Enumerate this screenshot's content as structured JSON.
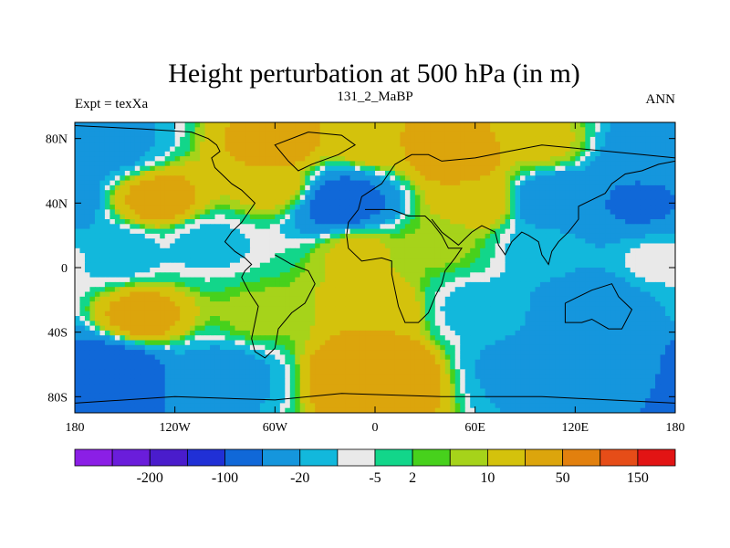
{
  "chart_data": {
    "type": "heatmap",
    "title": "Height perturbation at 500 hPa (in m)",
    "subtitle_left": "Expt = texXa",
    "subtitle_center": "131_2_MaBP",
    "subtitle_right": "ANN",
    "xlim": [
      -180,
      180
    ],
    "ylim": [
      -90,
      90
    ],
    "x_ticks": [
      {
        "value": -180,
        "label": "180"
      },
      {
        "value": -120,
        "label": "120W"
      },
      {
        "value": -60,
        "label": "60W"
      },
      {
        "value": 0,
        "label": "0"
      },
      {
        "value": 60,
        "label": "60E"
      },
      {
        "value": 120,
        "label": "120E"
      },
      {
        "value": 180,
        "label": "180"
      }
    ],
    "y_ticks": [
      {
        "value": 80,
        "label": "80N"
      },
      {
        "value": 40,
        "label": "40N"
      },
      {
        "value": 0,
        "label": "0"
      },
      {
        "value": -40,
        "label": "40S"
      },
      {
        "value": -80,
        "label": "80S"
      }
    ],
    "colorbar": {
      "colors": [
        "#8b1fe6",
        "#6a1ddb",
        "#4a1ccc",
        "#2030d6",
        "#1068d8",
        "#1596dd",
        "#12b8dc",
        "#e9e9e9",
        "#12d68a",
        "#47d11c",
        "#a6d31a",
        "#d4c20c",
        "#dca50c",
        "#e2800e",
        "#e64d18",
        "#e21414"
      ],
      "labels": [
        {
          "after_index": 1,
          "text": "-200"
        },
        {
          "after_index": 3,
          "text": "-100"
        },
        {
          "after_index": 5,
          "text": "-20"
        },
        {
          "after_index": 7,
          "text": "-5"
        },
        {
          "after_index": 8,
          "text": "2"
        },
        {
          "after_index": 10,
          "text": "10"
        },
        {
          "after_index": 12,
          "text": "50"
        },
        {
          "after_index": 14,
          "text": "150"
        }
      ]
    },
    "field_centers": [
      {
        "lon": -160,
        "lat": 75,
        "value": -25
      },
      {
        "lon": -60,
        "lat": 75,
        "value": 25
      },
      {
        "lon": 0,
        "lat": 80,
        "value": 20
      },
      {
        "lon": 50,
        "lat": 70,
        "value": 30
      },
      {
        "lon": 100,
        "lat": 78,
        "value": 12
      },
      {
        "lon": 165,
        "lat": 72,
        "value": -30
      },
      {
        "lon": -130,
        "lat": 42,
        "value": 25
      },
      {
        "lon": -60,
        "lat": 50,
        "value": 14
      },
      {
        "lon": -20,
        "lat": 40,
        "value": -70
      },
      {
        "lon": 60,
        "lat": 40,
        "value": 18
      },
      {
        "lon": 110,
        "lat": 40,
        "value": -45
      },
      {
        "lon": 160,
        "lat": 40,
        "value": -55
      },
      {
        "lon": -155,
        "lat": 10,
        "value": -15
      },
      {
        "lon": -100,
        "lat": 15,
        "value": -12
      },
      {
        "lon": -10,
        "lat": 10,
        "value": 12
      },
      {
        "lon": 40,
        "lat": 15,
        "value": 6
      },
      {
        "lon": 100,
        "lat": 12,
        "value": -12
      },
      {
        "lon": 170,
        "lat": 5,
        "value": -8
      },
      {
        "lon": -140,
        "lat": -30,
        "value": 25
      },
      {
        "lon": -70,
        "lat": -30,
        "value": 6
      },
      {
        "lon": 0,
        "lat": -25,
        "value": 18
      },
      {
        "lon": 60,
        "lat": -25,
        "value": -12
      },
      {
        "lon": 130,
        "lat": -25,
        "value": -40
      },
      {
        "lon": -160,
        "lat": -65,
        "value": -90
      },
      {
        "lon": -90,
        "lat": -65,
        "value": -25
      },
      {
        "lon": 0,
        "lat": -65,
        "value": 45
      },
      {
        "lon": 90,
        "lat": -60,
        "value": -25
      },
      {
        "lon": 150,
        "lat": -60,
        "value": -40
      }
    ],
    "coastlines": [
      [
        [
          -180,
          88
        ],
        [
          -140,
          86
        ],
        [
          -110,
          84
        ],
        [
          -100,
          80
        ],
        [
          -95,
          76
        ],
        [
          -93,
          72
        ],
        [
          -98,
          68
        ],
        [
          -96,
          62
        ],
        [
          -92,
          58
        ],
        [
          -86,
          52
        ],
        [
          -80,
          48
        ],
        [
          -72,
          40
        ],
        [
          -76,
          34
        ],
        [
          -80,
          28
        ],
        [
          -86,
          22
        ],
        [
          -90,
          16
        ],
        [
          -84,
          10
        ],
        [
          -78,
          6
        ],
        [
          -74,
          2
        ],
        [
          -78,
          -2
        ],
        [
          -80,
          -6
        ],
        [
          -75,
          -16
        ],
        [
          -70,
          -24
        ],
        [
          -72,
          -34
        ],
        [
          -74,
          -44
        ],
        [
          -72,
          -52
        ],
        [
          -66,
          -56
        ],
        [
          -60,
          -50
        ],
        [
          -58,
          -38
        ],
        [
          -50,
          -28
        ],
        [
          -42,
          -22
        ],
        [
          -36,
          -10
        ],
        [
          -40,
          -2
        ],
        [
          -50,
          2
        ],
        [
          -60,
          8
        ]
      ],
      [
        [
          -40,
          84
        ],
        [
          -20,
          82
        ],
        [
          -12,
          76
        ],
        [
          -22,
          70
        ],
        [
          -38,
          64
        ],
        [
          -46,
          60
        ],
        [
          -52,
          66
        ],
        [
          -60,
          76
        ],
        [
          -40,
          84
        ]
      ],
      [
        [
          -10,
          36
        ],
        [
          -8,
          44
        ],
        [
          -2,
          48
        ],
        [
          4,
          52
        ],
        [
          8,
          58
        ],
        [
          12,
          64
        ],
        [
          22,
          70
        ],
        [
          32,
          70
        ],
        [
          40,
          66
        ],
        [
          60,
          68
        ],
        [
          80,
          72
        ],
        [
          100,
          76
        ],
        [
          120,
          74
        ],
        [
          140,
          72
        ],
        [
          160,
          70
        ],
        [
          180,
          68
        ]
      ],
      [
        [
          -10,
          36
        ],
        [
          -16,
          28
        ],
        [
          -17,
          20
        ],
        [
          -16,
          12
        ],
        [
          -8,
          4
        ],
        [
          4,
          6
        ],
        [
          10,
          4
        ],
        [
          10,
          -4
        ],
        [
          12,
          -14
        ],
        [
          14,
          -24
        ],
        [
          18,
          -34
        ],
        [
          26,
          -34
        ],
        [
          32,
          -28
        ],
        [
          36,
          -18
        ],
        [
          40,
          -10
        ],
        [
          42,
          -2
        ],
        [
          48,
          6
        ],
        [
          52,
          12
        ],
        [
          44,
          12
        ],
        [
          40,
          20
        ],
        [
          34,
          28
        ],
        [
          30,
          32
        ],
        [
          20,
          32
        ],
        [
          10,
          36
        ],
        [
          -6,
          36
        ]
      ],
      [
        [
          34,
          30
        ],
        [
          40,
          22
        ],
        [
          50,
          14
        ],
        [
          58,
          22
        ],
        [
          64,
          26
        ],
        [
          72,
          22
        ],
        [
          74,
          14
        ],
        [
          78,
          8
        ],
        [
          82,
          16
        ],
        [
          88,
          22
        ],
        [
          92,
          20
        ],
        [
          98,
          16
        ],
        [
          100,
          8
        ],
        [
          104,
          2
        ],
        [
          106,
          10
        ],
        [
          110,
          16
        ],
        [
          116,
          22
        ],
        [
          122,
          30
        ],
        [
          122,
          38
        ],
        [
          130,
          42
        ],
        [
          138,
          46
        ],
        [
          142,
          52
        ],
        [
          150,
          58
        ],
        [
          160,
          60
        ],
        [
          170,
          64
        ],
        [
          180,
          66
        ]
      ],
      [
        [
          114,
          -22
        ],
        [
          114,
          -34
        ],
        [
          124,
          -34
        ],
        [
          130,
          -32
        ],
        [
          140,
          -38
        ],
        [
          148,
          -38
        ],
        [
          152,
          -30
        ],
        [
          154,
          -26
        ],
        [
          146,
          -18
        ],
        [
          142,
          -10
        ],
        [
          136,
          -12
        ],
        [
          130,
          -14
        ],
        [
          122,
          -18
        ],
        [
          114,
          -22
        ]
      ],
      [
        [
          -180,
          -84
        ],
        [
          -120,
          -80
        ],
        [
          -60,
          -82
        ],
        [
          -20,
          -78
        ],
        [
          40,
          -80
        ],
        [
          100,
          -80
        ],
        [
          180,
          -84
        ]
      ]
    ]
  }
}
